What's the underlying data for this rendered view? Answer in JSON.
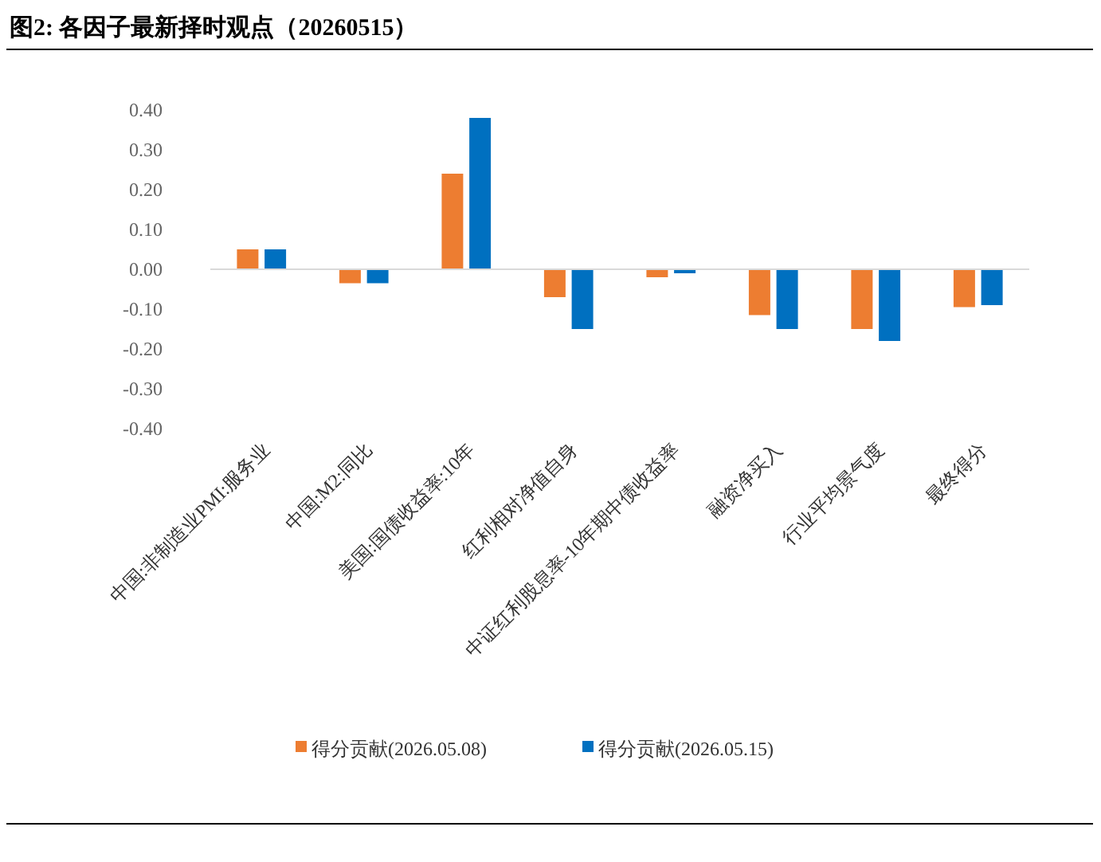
{
  "chart_data": {
    "type": "bar",
    "title": "图2:  各因子最新择时观点（20260515）",
    "categories": [
      "中国:非制造业PMI:服务业",
      "中国:M2:同比",
      "美国:国债收益率:10年",
      "红利相对净值自身",
      "中证红利股息率-10年期中债收益率",
      "融资净买入",
      "行业平均景气度",
      "最终得分"
    ],
    "series": [
      {
        "name": "得分贡献(2026.05.08)",
        "color": "#ed7d31",
        "values": [
          0.05,
          -0.035,
          0.24,
          -0.07,
          -0.02,
          -0.115,
          -0.15,
          -0.095
        ]
      },
      {
        "name": "得分贡献(2026.05.15)",
        "color": "#0070c0",
        "values": [
          0.05,
          -0.035,
          0.38,
          -0.15,
          -0.01,
          -0.15,
          -0.18,
          -0.09
        ]
      }
    ],
    "ylim": [
      -0.4,
      0.4
    ],
    "yticks": [
      {
        "value": -0.4,
        "label": "-0.40"
      },
      {
        "value": -0.3,
        "label": "-0.30"
      },
      {
        "value": -0.2,
        "label": "-0.20"
      },
      {
        "value": -0.1,
        "label": "-0.10"
      },
      {
        "value": 0,
        "label": "0.00"
      },
      {
        "value": 0.1,
        "label": "0.10"
      },
      {
        "value": 0.2,
        "label": "0.20"
      },
      {
        "value": 0.3,
        "label": "0.30"
      },
      {
        "value": 0.4,
        "label": "0.40"
      }
    ],
    "legend": "bottom"
  }
}
